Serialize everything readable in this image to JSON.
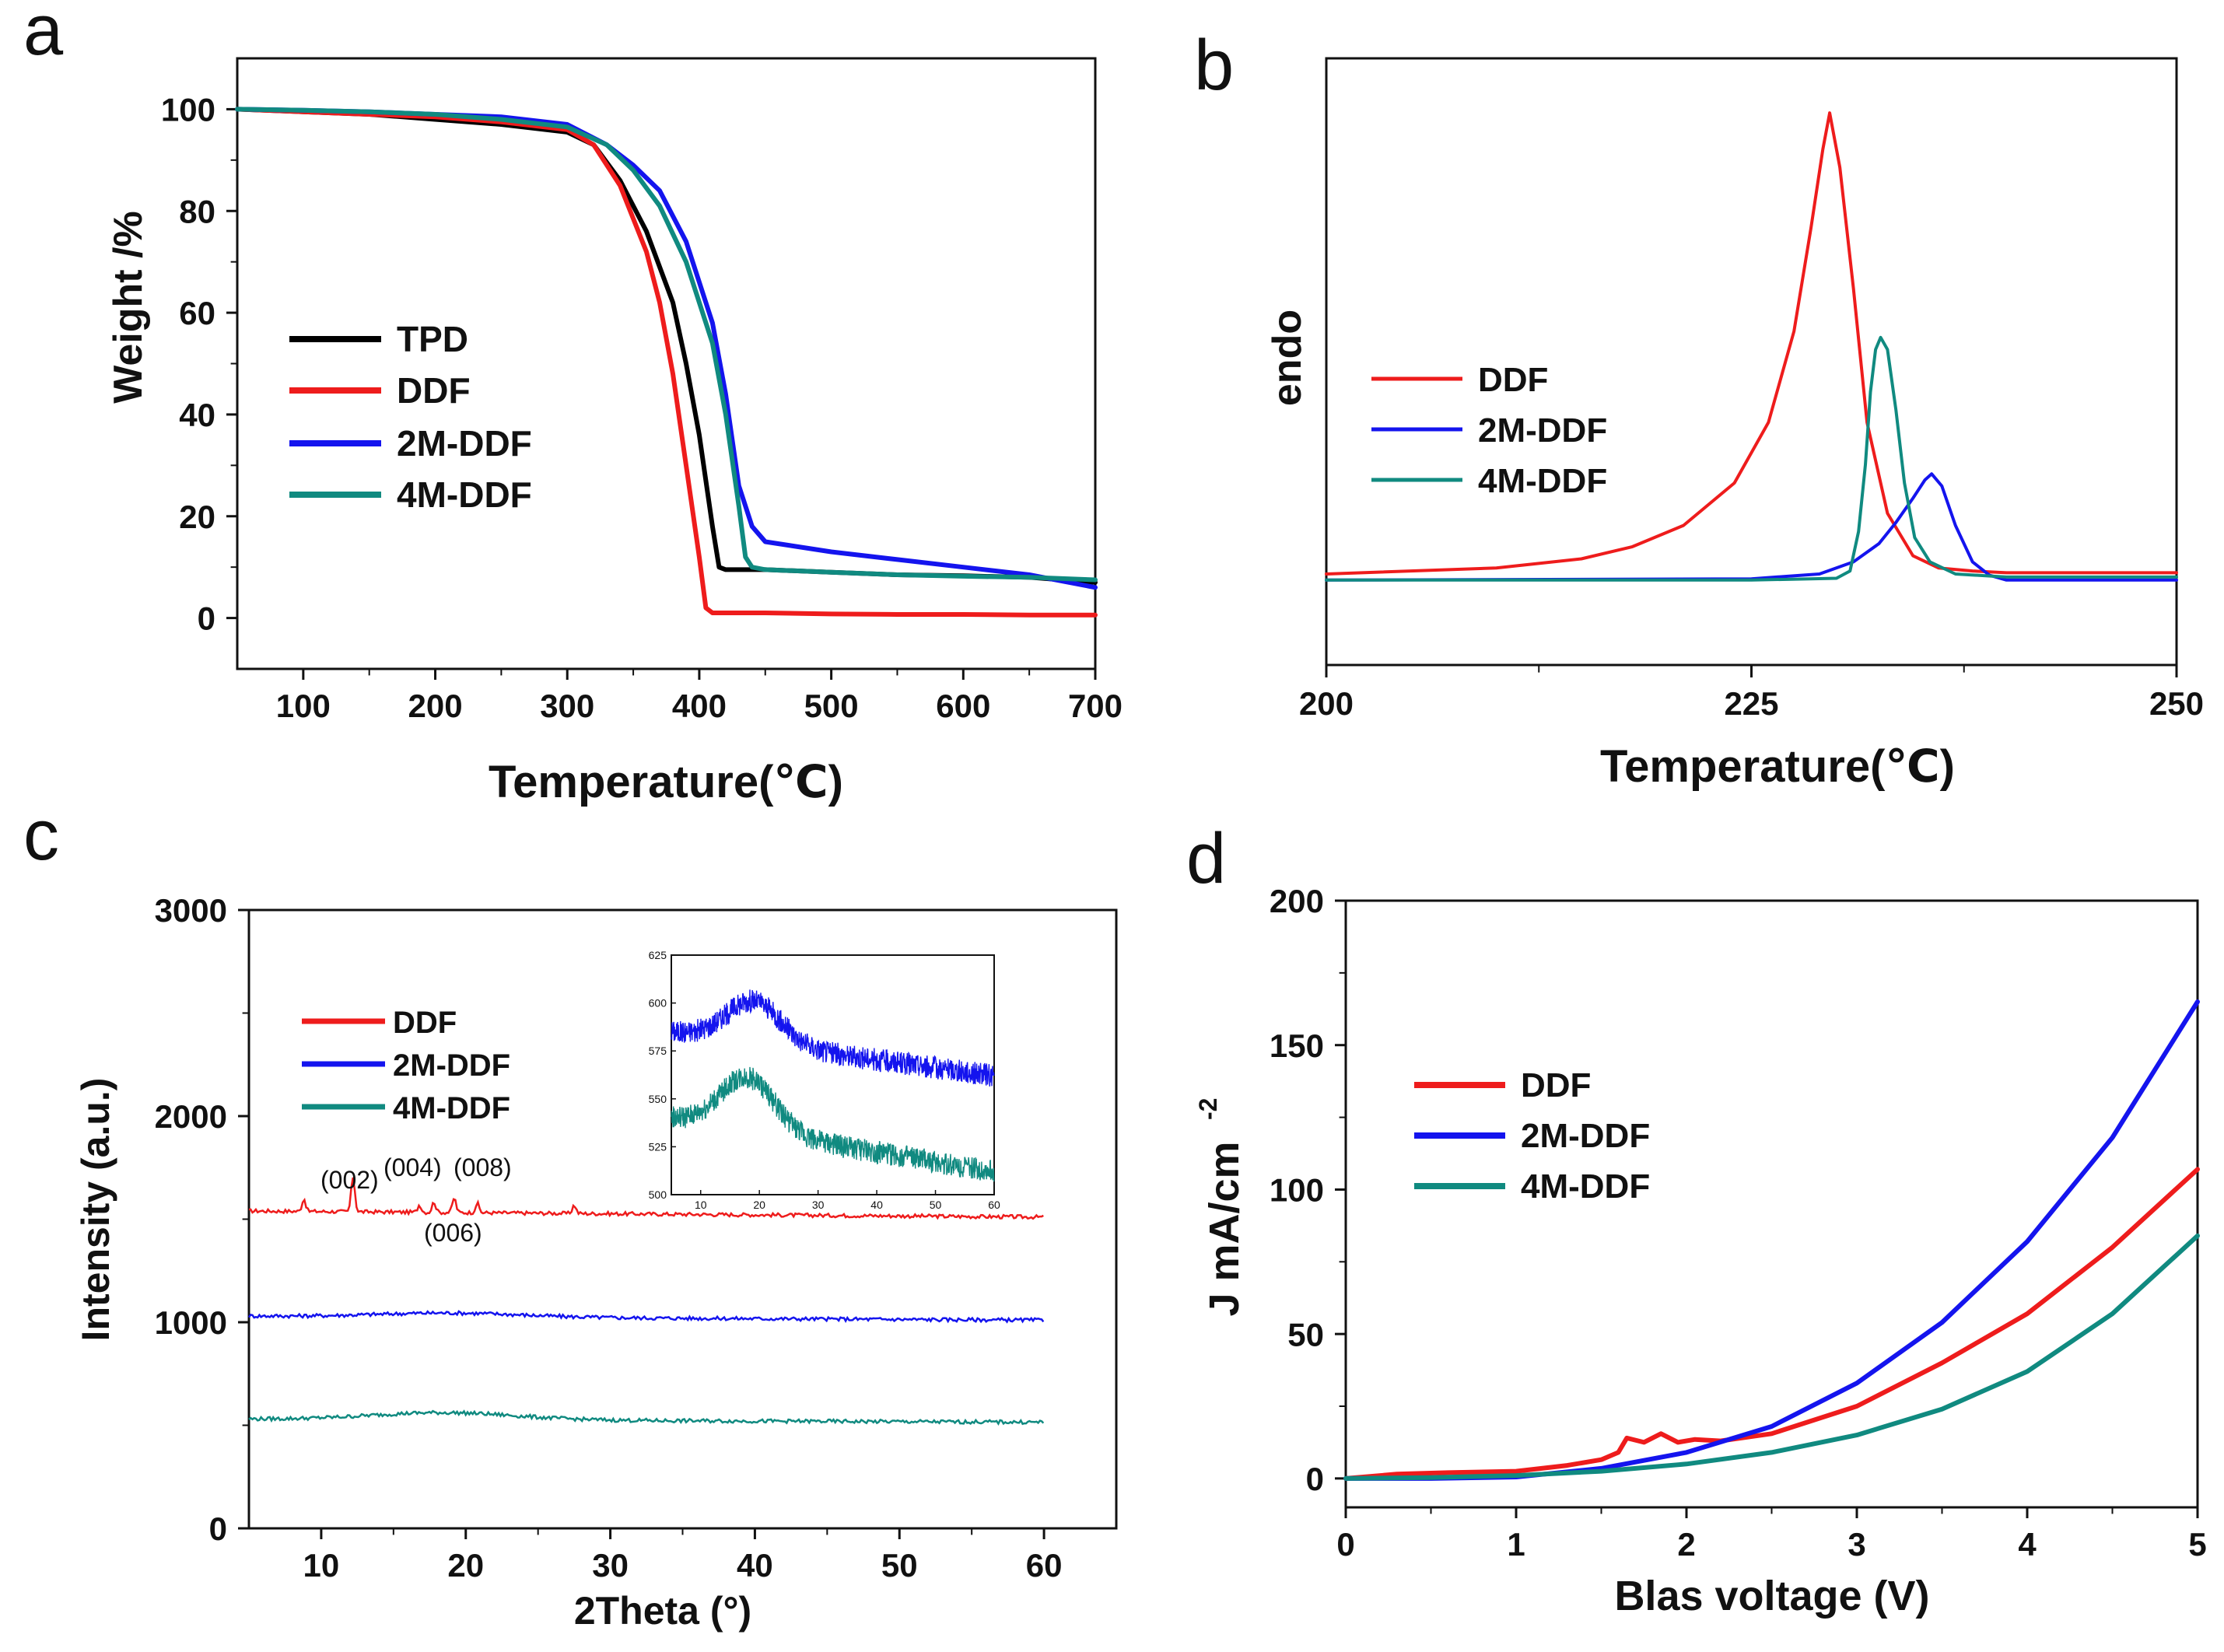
{
  "chart_data": [
    {
      "panel_label": "a",
      "type": "line",
      "title": "",
      "xlabel": "Temperature(℃)",
      "ylabel": "Weight /%",
      "xlim": [
        50,
        700
      ],
      "ylim": [
        -10,
        110
      ],
      "xticks": [
        100,
        200,
        300,
        400,
        500,
        600,
        700
      ],
      "yticks": [
        0,
        20,
        40,
        60,
        80,
        100
      ],
      "legend_position": "center-left",
      "series": [
        {
          "name": "TPD",
          "color": "#000000",
          "x": [
            50,
            100,
            150,
            200,
            250,
            300,
            320,
            340,
            360,
            380,
            390,
            400,
            410,
            415,
            420,
            450,
            500,
            550,
            600,
            650,
            700
          ],
          "y": [
            100,
            99.5,
            99,
            98,
            97,
            95.5,
            93,
            86,
            76,
            62,
            50,
            36,
            18,
            10,
            9.5,
            9.5,
            9,
            8.5,
            8.3,
            8,
            7
          ]
        },
        {
          "name": "DDF",
          "color": "#ee1c1c",
          "x": [
            50,
            100,
            150,
            200,
            250,
            300,
            320,
            340,
            360,
            370,
            380,
            390,
            400,
            405,
            410,
            450,
            500,
            550,
            600,
            650,
            700
          ],
          "y": [
            100,
            99.5,
            99,
            98.5,
            97.5,
            96,
            93,
            85,
            72,
            62,
            48,
            30,
            12,
            2,
            1,
            1,
            0.8,
            0.7,
            0.7,
            0.6,
            0.6
          ]
        },
        {
          "name": "2M-DDF",
          "color": "#1414ee",
          "x": [
            50,
            100,
            150,
            200,
            250,
            300,
            330,
            350,
            370,
            390,
            410,
            420,
            430,
            440,
            450,
            500,
            550,
            600,
            650,
            700
          ],
          "y": [
            100,
            99.8,
            99.5,
            99,
            98.5,
            97,
            93,
            89,
            84,
            74,
            58,
            44,
            26,
            18,
            15,
            13,
            11.5,
            10,
            8.5,
            6
          ]
        },
        {
          "name": "4M-DDF",
          "color": "#108a80",
          "x": [
            50,
            100,
            150,
            200,
            250,
            300,
            330,
            350,
            370,
            390,
            410,
            420,
            430,
            435,
            440,
            450,
            500,
            550,
            600,
            650,
            700
          ],
          "y": [
            100,
            99.8,
            99.5,
            99,
            98,
            96.5,
            93,
            88,
            81,
            70,
            54,
            40,
            22,
            12,
            10,
            9.5,
            9,
            8.5,
            8.2,
            8,
            7.5
          ]
        }
      ]
    },
    {
      "panel_label": "b",
      "type": "line",
      "title": "",
      "xlabel": "Temperature(℃)",
      "ylabel": "endo",
      "xlim": [
        200,
        250
      ],
      "ylim": [
        0,
        100
      ],
      "xticks": [
        200,
        225,
        250
      ],
      "legend_position": "center-left",
      "series": [
        {
          "name": "DDF",
          "color": "#ee1c1c",
          "x": [
            200,
            210,
            215,
            218,
            221,
            224,
            226,
            227.5,
            228.5,
            229.2,
            229.6,
            230.2,
            231,
            231.8,
            233,
            234.5,
            236,
            238,
            240,
            245,
            250
          ],
          "y": [
            15,
            16,
            17.5,
            19.5,
            23,
            30,
            40,
            55,
            72,
            85,
            91,
            82,
            62,
            40,
            25,
            18,
            16,
            15.5,
            15.2,
            15.2,
            15.2
          ]
        },
        {
          "name": "2M-DDF",
          "color": "#1414ee",
          "x": [
            200,
            225,
            229,
            231,
            232.5,
            233.5,
            234.5,
            235.2,
            235.6,
            236.2,
            237,
            238,
            239,
            240,
            245,
            250
          ],
          "y": [
            14,
            14.2,
            15,
            17,
            20,
            23.5,
            27.5,
            30.5,
            31.5,
            29.5,
            23,
            17,
            14.8,
            14,
            14,
            14
          ]
        },
        {
          "name": "4M-DDF",
          "color": "#108a80",
          "x": [
            200,
            225,
            230,
            230.8,
            231.3,
            231.7,
            232,
            232.3,
            232.6,
            233,
            233.5,
            234,
            234.6,
            235.5,
            237,
            240,
            250
          ],
          "y": [
            14,
            14,
            14.3,
            15.5,
            22,
            33,
            45,
            52,
            54,
            52,
            42,
            30,
            21,
            17,
            15,
            14.5,
            14.5
          ]
        }
      ]
    },
    {
      "panel_label": "c",
      "type": "line",
      "title": "",
      "xlabel": "2Theta (°)",
      "ylabel": "Intensity (a.u.)",
      "xlim": [
        5,
        65
      ],
      "ylim": [
        0,
        3000
      ],
      "xticks": [
        10,
        20,
        30,
        40,
        50,
        60
      ],
      "yticks": [
        0,
        1000,
        2000,
        3000
      ],
      "legend_position": "upper-left",
      "annotations": [
        "(002)",
        "(004)",
        "(008)",
        "(006)"
      ],
      "series": [
        {
          "name": "DDF",
          "color": "#ee1c1c",
          "baseline": 1540,
          "end": 1510,
          "peaks": [
            [
              8.8,
              60
            ],
            [
              12.2,
              170
            ],
            [
              16.8,
              35
            ],
            [
              17.8,
              50
            ],
            [
              19.2,
              70
            ],
            [
              20.8,
              45
            ],
            [
              27.5,
              40
            ]
          ]
        },
        {
          "name": "2M-DDF",
          "color": "#1414ee",
          "baseline": 1030,
          "end": 1010,
          "hump_center": 19,
          "hump_height": 20
        },
        {
          "name": "4M-DDF",
          "color": "#108a80",
          "baseline": 530,
          "end": 515,
          "hump_center": 18.5,
          "hump_height": 35
        }
      ],
      "inset": {
        "xlim": [
          5,
          60
        ],
        "ylim": [
          500,
          625
        ],
        "xticks": [
          10,
          20,
          30,
          40,
          50,
          60
        ],
        "yticks": [
          500,
          525,
          550,
          575,
          600,
          625
        ],
        "series": [
          {
            "name": "2M-DDF",
            "color": "#1414ee",
            "base_start": 585,
            "base_end": 562,
            "hump_center": 19,
            "hump_height": 22,
            "noise": 6
          },
          {
            "name": "4M-DDF",
            "color": "#108a80",
            "base_start": 540,
            "base_end": 512,
            "hump_center": 18,
            "hump_height": 28,
            "noise": 6
          }
        ]
      }
    },
    {
      "panel_label": "d",
      "type": "line",
      "title": "",
      "xlabel": "Blas voltage (V)",
      "ylabel": "J mA/cm",
      "ylabel_superscript": "-2",
      "xlim": [
        0,
        5
      ],
      "ylim": [
        -10,
        200
      ],
      "xticks": [
        0,
        1,
        2,
        3,
        4,
        5
      ],
      "yticks": [
        0,
        50,
        100,
        150,
        200
      ],
      "legend_position": "center-left",
      "series": [
        {
          "name": "DDF",
          "color": "#ee1c1c",
          "x": [
            0,
            0.3,
            0.6,
            1.0,
            1.3,
            1.5,
            1.6,
            1.65,
            1.75,
            1.85,
            1.95,
            2.05,
            2.2,
            2.5,
            3.0,
            3.5,
            4.0,
            4.5,
            5.0
          ],
          "y": [
            0,
            1.5,
            2,
            2.5,
            4.5,
            6.5,
            9,
            14,
            12.5,
            15.5,
            12.5,
            13.5,
            13,
            15.5,
            25,
            40,
            57,
            80,
            107
          ]
        },
        {
          "name": "2M-DDF",
          "color": "#1414ee",
          "x": [
            0,
            0.5,
            1.0,
            1.5,
            2.0,
            2.5,
            3.0,
            3.5,
            4.0,
            4.5,
            5.0
          ],
          "y": [
            0,
            0,
            0.5,
            3.5,
            9,
            18,
            33,
            54,
            82,
            118,
            165
          ]
        },
        {
          "name": "4M-DDF",
          "color": "#108a80",
          "x": [
            0,
            0.5,
            1.0,
            1.5,
            2.0,
            2.5,
            3.0,
            3.5,
            4.0,
            4.5,
            5.0
          ],
          "y": [
            0,
            0.3,
            1,
            2.5,
            5,
            9,
            15,
            24,
            37,
            57,
            84
          ]
        }
      ]
    }
  ]
}
